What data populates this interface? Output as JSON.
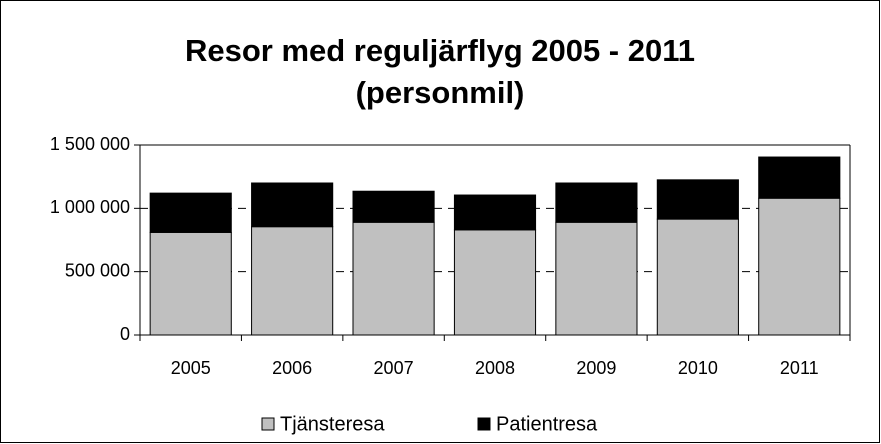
{
  "chart_data": {
    "type": "stacked_bar",
    "title": "Resor med reguljärflyg 2005 - 2011 (personmil)",
    "categories": [
      "2005",
      "2006",
      "2007",
      "2008",
      "2009",
      "2010",
      "2011"
    ],
    "series": [
      {
        "name": "Tjänsteresa",
        "color": "#c0c0c0",
        "values": [
          810000,
          855000,
          890000,
          830000,
          890000,
          915000,
          1080000
        ]
      },
      {
        "name": "Patientresa",
        "color": "#000000",
        "values": [
          310000,
          345000,
          245000,
          275000,
          310000,
          310000,
          325000
        ]
      }
    ],
    "ylim": [
      0,
      1500000
    ],
    "yticks": [
      0,
      {
        "value": 500000,
        "label": "500 000"
      },
      {
        "value": 1000000,
        "label": "1 000 000"
      },
      {
        "value": 1500000,
        "label": "1 500 000"
      }
    ],
    "grid": true,
    "legend": "bottom"
  }
}
